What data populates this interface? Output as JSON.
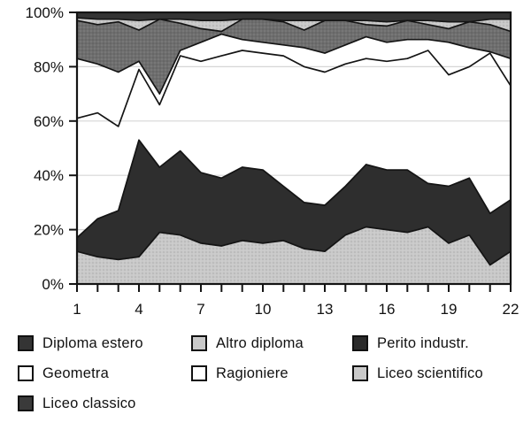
{
  "accent_colors": {
    "dark_band": "#2e2e2e",
    "medium_gray_band": "#6e6e6e",
    "light_gray_band": "#c9c9c9",
    "top_strip": "#343434",
    "outline": "#141414",
    "gridline": "#d6d6d6"
  },
  "chart_data": {
    "type": "area",
    "stacked": true,
    "percent": true,
    "title": "",
    "xlabel": "",
    "ylabel": "",
    "ylim": [
      0,
      100
    ],
    "grid_levels": [
      20,
      40,
      60,
      80
    ],
    "x": [
      1,
      2,
      3,
      4,
      5,
      6,
      7,
      8,
      9,
      10,
      11,
      12,
      13,
      14,
      15,
      16,
      17,
      18,
      19,
      20,
      21,
      22
    ],
    "xticks_labeled": [
      1,
      4,
      7,
      10,
      13,
      16,
      19,
      22
    ],
    "yticks": [
      {
        "value": 0,
        "label": "0%"
      },
      {
        "value": 20,
        "label": "20%"
      },
      {
        "value": 40,
        "label": "40%"
      },
      {
        "value": 60,
        "label": "60%"
      },
      {
        "value": 80,
        "label": "80%"
      },
      {
        "value": 100,
        "label": "100%"
      }
    ],
    "series": [
      {
        "id": "liceo-scientifico",
        "name": "Liceo scientifico",
        "color": "#c9c9c9",
        "dots": true,
        "values": [
          12,
          10,
          9,
          10,
          19,
          18,
          15,
          14,
          16,
          15,
          16,
          13,
          12,
          18,
          21,
          20,
          19,
          21,
          15,
          18,
          7,
          12
        ]
      },
      {
        "id": "perito-industr",
        "name": "Perito industr.",
        "color": "#2e2e2e",
        "dots": false,
        "values": [
          5,
          14,
          18,
          43,
          24,
          31,
          26,
          25,
          27,
          27,
          20,
          17,
          17,
          18,
          23,
          22,
          23,
          16,
          21,
          21,
          19,
          19
        ]
      },
      {
        "id": "ragioniere",
        "name": "Ragioniere",
        "color": "#ffffff",
        "dots": false,
        "values": [
          44,
          39,
          31,
          26,
          23,
          35,
          41,
          45,
          43,
          43,
          48,
          50,
          49,
          45,
          39,
          40,
          41,
          49,
          41,
          41,
          59,
          42
        ]
      },
      {
        "id": "geometra",
        "name": "Geometra",
        "color": "#ffffff",
        "dots": false,
        "values": [
          22,
          18,
          20,
          3,
          4,
          2,
          7,
          8,
          4,
          4,
          4,
          7,
          7,
          7,
          8,
          7,
          7,
          4,
          12,
          7,
          0.5,
          10
        ]
      },
      {
        "id": "liceo-classico",
        "name": "Liceo classico",
        "color": "#6e6e6e",
        "dots": true,
        "values": [
          14,
          14.5,
          18.5,
          11.5,
          27.5,
          10,
          5,
          1,
          7.5,
          8.5,
          8.5,
          6.5,
          12,
          9,
          4.5,
          6,
          7,
          5.5,
          5,
          9.5,
          10,
          10
        ]
      },
      {
        "id": "altro-diploma",
        "name": "Altro diploma",
        "color": "#c9c9c9",
        "dots": true,
        "values": [
          1,
          2,
          1,
          3.5,
          0,
          1.5,
          3,
          4,
          0,
          0,
          0.5,
          3.5,
          0,
          0,
          1.5,
          1.5,
          0,
          1.5,
          2.5,
          0,
          2,
          4.5
        ]
      },
      {
        "id": "diploma-estero",
        "name": "Diploma estero",
        "color": "#343434",
        "dots": false,
        "values": [
          2,
          2.5,
          2.5,
          3,
          2.5,
          2.5,
          3,
          3,
          2.5,
          2.5,
          3,
          3,
          3,
          3,
          3,
          3.5,
          3,
          3,
          3.5,
          3.5,
          2.5,
          2.5
        ]
      }
    ]
  },
  "legend": {
    "items": [
      {
        "id": "diploma-estero",
        "label": "Diploma estero",
        "color": "#343434"
      },
      {
        "id": "altro-diploma",
        "label": "Altro diploma",
        "color": "#c9c9c9"
      },
      {
        "id": "perito-industr",
        "label": "Perito industr.",
        "color": "#2b2b2b"
      },
      {
        "id": "geometra",
        "label": "Geometra",
        "color": "#ffffff"
      },
      {
        "id": "ragioniere",
        "label": "Ragioniere",
        "color": "#ffffff"
      },
      {
        "id": "liceo-scientifico",
        "label": "Liceo scientifico",
        "color": "#c9c9c9"
      },
      {
        "id": "liceo-classico",
        "label": "Liceo classico",
        "color": "#3a3a3a"
      }
    ]
  }
}
